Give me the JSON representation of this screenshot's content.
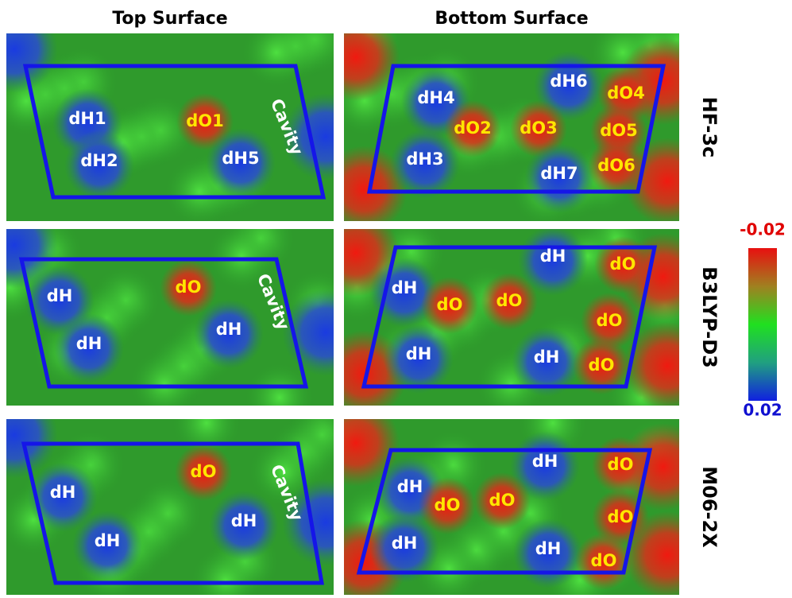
{
  "columns": [
    "Top Surface",
    "Bottom Surface"
  ],
  "rows": [
    {
      "method": "HF-3c",
      "panels": [
        {
          "labels": [
            "dH1",
            "dH2",
            "dO1",
            "dH5",
            "Cavity"
          ]
        },
        {
          "labels": [
            "dH4",
            "dH6",
            "dO4",
            "dO2",
            "dO3",
            "dO5",
            "dH3",
            "dH7",
            "dO6"
          ]
        }
      ]
    },
    {
      "method": "B3LYP-D3",
      "panels": [
        {
          "labels": [
            "dH",
            "dO",
            "dH",
            "dH",
            "Cavity"
          ]
        },
        {
          "labels": [
            "dH",
            "dO",
            "dH",
            "dO",
            "dO",
            "dO",
            "dH",
            "dH",
            "dO"
          ]
        }
      ]
    },
    {
      "method": "M06-2X",
      "panels": [
        {
          "labels": [
            "dO",
            "dH",
            "dH",
            "dH",
            "Cavity"
          ]
        },
        {
          "labels": [
            "dH",
            "dO",
            "dH",
            "dO",
            "dO",
            "dO",
            "dH",
            "dH",
            "dO"
          ]
        }
      ]
    }
  ],
  "colorbar": {
    "top": -0.02,
    "bottom": 0.02
  }
}
